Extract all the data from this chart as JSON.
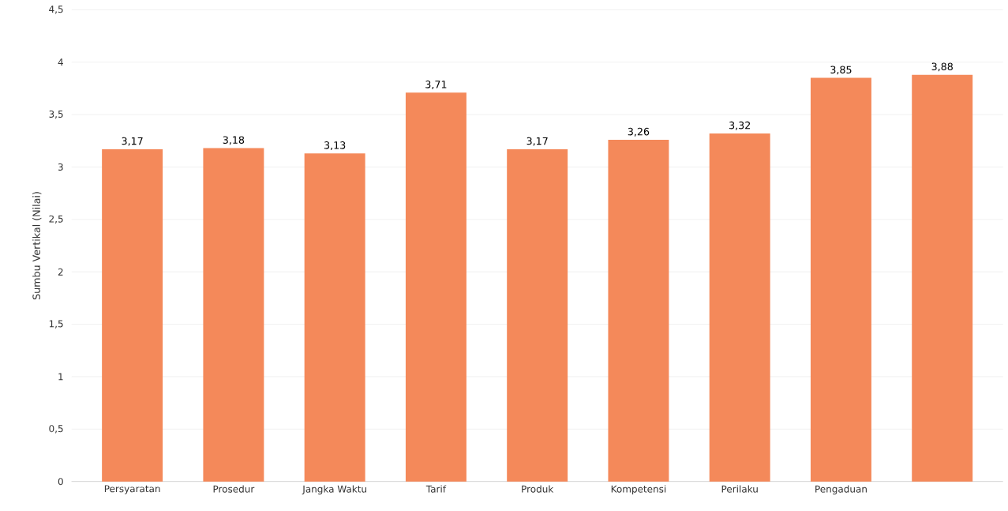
{
  "chart_data": {
    "type": "bar",
    "ylabel": "Sumbu Vertikal (Nilai)",
    "categories": [
      "Persyaratan",
      "Prosedur",
      "Jangka Waktu",
      "Tarif",
      "Produk",
      "Kompetensi",
      "Perilaku",
      "Pengaduan",
      null
    ],
    "values": [
      3.17,
      3.18,
      3.13,
      3.71,
      3.17,
      3.26,
      3.32,
      3.85,
      3.88
    ],
    "value_labels": [
      "3,17",
      "3,18",
      "3,13",
      "3,71",
      "3,17",
      "3,26",
      "3,32",
      "3,85",
      "3,88"
    ],
    "color": "#f4895a",
    "ylim": [
      0,
      4.5
    ],
    "yticks": [
      0,
      {
        "value": 0.5,
        "label": "0,5"
      },
      1,
      {
        "value": 1.5,
        "label": "1,5"
      },
      2,
      {
        "value": 2.5,
        "label": "2,5"
      },
      3,
      {
        "value": 3.5,
        "label": "3,5"
      },
      4,
      {
        "value": 4.5,
        "label": "4,5"
      }
    ],
    "grid": "y"
  }
}
